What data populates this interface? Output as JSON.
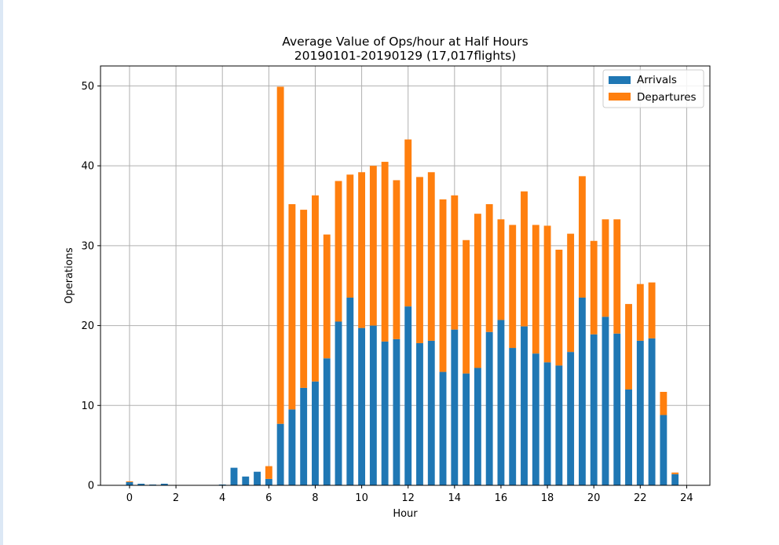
{
  "colors": {
    "arrivals": "#1f77b4",
    "departures": "#ff7f0e",
    "grid": "#b0b0b0",
    "axis": "#000000"
  },
  "chart_data": {
    "type": "bar",
    "stacked": true,
    "title": "Average Value of Ops/hour at Half Hours",
    "subtitle": "20190101-20190129 (17,017flights)",
    "xlabel": "Hour",
    "ylabel": "Operations",
    "xlim": [
      -1.25,
      25.0
    ],
    "ylim": [
      0,
      52.5
    ],
    "x_ticks": [
      0,
      2,
      4,
      6,
      8,
      10,
      12,
      14,
      16,
      18,
      20,
      22,
      24
    ],
    "x_tick_labels": [
      "0",
      "2",
      "4",
      "6",
      "8",
      "10",
      "12",
      "14",
      "16",
      "18",
      "20",
      "22",
      "24"
    ],
    "y_ticks": [
      0,
      10,
      20,
      30,
      40,
      50
    ],
    "y_tick_labels": [
      "0",
      "10",
      "20",
      "30",
      "40",
      "50"
    ],
    "grid": true,
    "legend_position": "top-right",
    "bar_width": 0.3,
    "x": [
      0,
      0.5,
      1,
      1.5,
      2,
      2.5,
      3,
      3.5,
      4,
      4.5,
      5,
      5.5,
      6,
      6.5,
      7,
      7.5,
      8,
      8.5,
      9,
      9.5,
      10,
      10.5,
      11,
      11.5,
      12,
      12.5,
      13,
      13.5,
      14,
      14.5,
      15,
      15.5,
      16,
      16.5,
      17,
      17.5,
      18,
      18.5,
      19,
      19.5,
      20,
      20.5,
      21,
      21.5,
      22,
      22.5,
      23,
      23.5
    ],
    "series": [
      {
        "name": "Arrivals",
        "values": [
          0.4,
          0.2,
          0.1,
          0.2,
          0,
          0,
          0,
          0,
          0.1,
          2.2,
          1.1,
          1.7,
          0.8,
          7.7,
          9.5,
          12.2,
          13.0,
          15.9,
          20.5,
          23.5,
          19.7,
          20.0,
          18.0,
          18.3,
          22.4,
          17.8,
          18.1,
          14.2,
          19.5,
          14.0,
          14.7,
          19.2,
          20.7,
          17.2,
          19.9,
          16.5,
          15.4,
          15.0,
          16.7,
          23.5,
          18.9,
          21.1,
          19.0,
          12.0,
          18.1,
          18.4,
          8.8,
          1.4
        ]
      },
      {
        "name": "Departures",
        "values": [
          0.1,
          0,
          0,
          0,
          0,
          0,
          0,
          0,
          0,
          0,
          0,
          0,
          1.6,
          42.2,
          25.7,
          22.3,
          23.3,
          15.5,
          17.6,
          15.4,
          19.5,
          20.0,
          22.5,
          19.9,
          20.9,
          20.8,
          21.1,
          21.6,
          16.8,
          16.7,
          19.3,
          16.0,
          12.6,
          15.4,
          16.9,
          16.1,
          17.1,
          14.5,
          14.8,
          15.2,
          11.7,
          12.2,
          14.3,
          10.7,
          7.1,
          7.0,
          2.9,
          0.2
        ]
      }
    ]
  }
}
